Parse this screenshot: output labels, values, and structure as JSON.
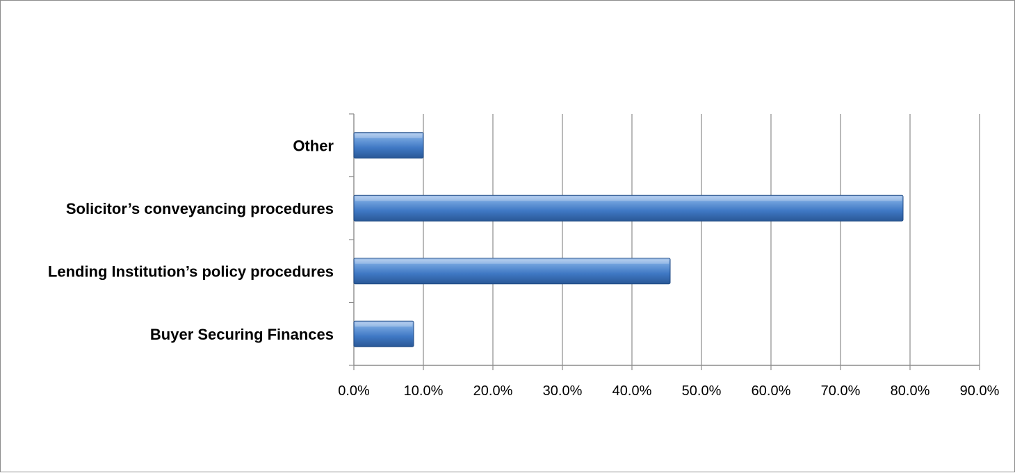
{
  "chart_data": {
    "type": "bar",
    "orientation": "horizontal",
    "categories": [
      "Other",
      "Solicitor’s conveyancing procedures",
      "Lending Institution’s policy procedures",
      "Buyer Securing Finances"
    ],
    "values": [
      10.0,
      79.0,
      45.5,
      8.6
    ],
    "value_unit": "%",
    "xlim": [
      0,
      90
    ],
    "x_ticks": [
      "0.0%",
      "10.0%",
      "20.0%",
      "30.0%",
      "40.0%",
      "50.0%",
      "60.0%",
      "70.0%",
      "80.0%",
      "90.0%"
    ],
    "grid": "vertical",
    "legend": "none",
    "bar_color": "#4f81bd"
  }
}
